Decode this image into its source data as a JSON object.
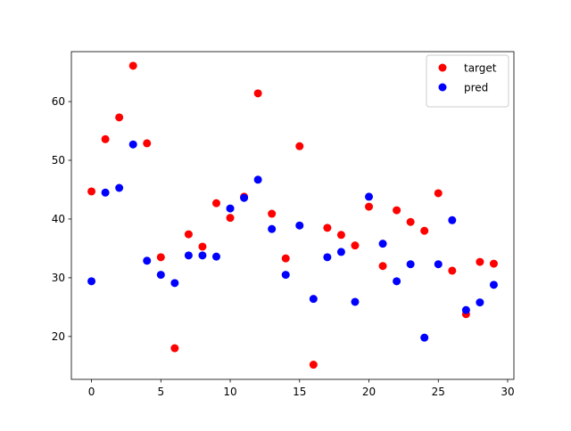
{
  "chart_data": {
    "type": "scatter",
    "x": [
      0,
      1,
      2,
      3,
      4,
      5,
      6,
      7,
      8,
      9,
      10,
      11,
      12,
      13,
      14,
      15,
      16,
      17,
      18,
      19,
      20,
      21,
      22,
      23,
      24,
      25,
      26,
      27,
      28,
      29
    ],
    "series": [
      {
        "name": "target",
        "color": "#ff0000",
        "values": [
          44.7,
          53.6,
          57.3,
          66.1,
          52.9,
          33.5,
          18.0,
          37.4,
          35.3,
          42.7,
          40.2,
          43.8,
          61.4,
          40.9,
          33.3,
          52.4,
          15.2,
          38.5,
          37.3,
          35.5,
          42.1,
          32.0,
          41.5,
          39.5,
          38.0,
          44.4,
          31.2,
          23.8,
          32.7,
          32.4
        ]
      },
      {
        "name": "pred",
        "color": "#0000ff",
        "values": [
          29.4,
          44.5,
          45.3,
          52.7,
          32.9,
          30.5,
          29.1,
          33.8,
          33.8,
          33.6,
          41.8,
          43.6,
          46.7,
          38.3,
          30.5,
          38.9,
          26.4,
          33.5,
          34.4,
          25.9,
          43.8,
          35.8,
          29.4,
          32.3,
          19.8,
          32.3,
          39.8,
          24.5,
          25.8,
          28.8
        ]
      }
    ],
    "xlim": [
      -1.45,
      30.45
    ],
    "xticks": [
      0,
      5,
      10,
      15,
      20,
      25,
      30
    ],
    "ylim": [
      12.7,
      68.5
    ],
    "yticks": [
      20,
      30,
      40,
      50,
      60
    ],
    "legend": "upper right"
  }
}
